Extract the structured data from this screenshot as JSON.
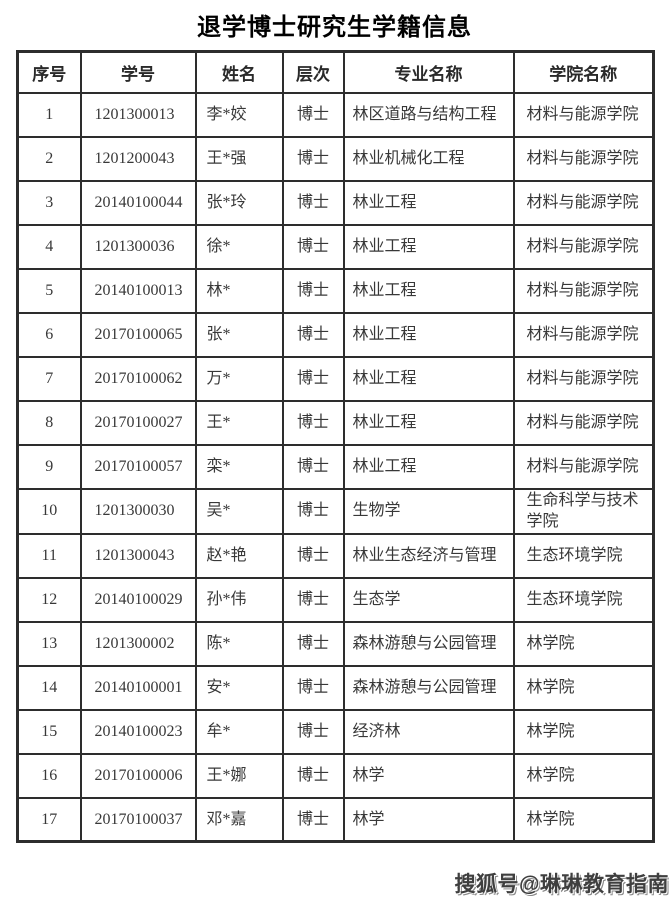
{
  "page": {
    "title": "退学博士研究生学籍信息",
    "watermark": "搜狐号@琳琳教育指南",
    "background": "#ffffff"
  },
  "colors": {
    "text": "#383838",
    "title": "#000000",
    "border": "#2d2d2d",
    "watermark": "#3f3f3f"
  },
  "table": {
    "headers": [
      "序号",
      "学号",
      "姓名",
      "层次",
      "专业名称",
      "学院名称"
    ],
    "rows": [
      [
        "1",
        "1201300013",
        "李*姣",
        "博士",
        "林区道路与结构工程",
        "材料与能源学院"
      ],
      [
        "2",
        "1201200043",
        "王*强",
        "博士",
        "林业机械化工程",
        "材料与能源学院"
      ],
      [
        "3",
        "20140100044",
        "张*玲",
        "博士",
        "林业工程",
        "材料与能源学院"
      ],
      [
        "4",
        "1201300036",
        "徐*",
        "博士",
        "林业工程",
        "材料与能源学院"
      ],
      [
        "5",
        "20140100013",
        "林*",
        "博士",
        "林业工程",
        "材料与能源学院"
      ],
      [
        "6",
        "20170100065",
        "张*",
        "博士",
        "林业工程",
        "材料与能源学院"
      ],
      [
        "7",
        "20170100062",
        "万*",
        "博士",
        "林业工程",
        "材料与能源学院"
      ],
      [
        "8",
        "20170100027",
        "王*",
        "博士",
        "林业工程",
        "材料与能源学院"
      ],
      [
        "9",
        "20170100057",
        "栾*",
        "博士",
        "林业工程",
        "材料与能源学院"
      ],
      [
        "10",
        "1201300030",
        "吴*",
        "博士",
        "生物学",
        "生命科学与技术学院"
      ],
      [
        "11",
        "1201300043",
        "赵*艳",
        "博士",
        "林业生态经济与管理",
        "生态环境学院"
      ],
      [
        "12",
        "20140100029",
        "孙*伟",
        "博士",
        "生态学",
        "生态环境学院"
      ],
      [
        "13",
        "1201300002",
        "陈*",
        "博士",
        "森林游憩与公园管理",
        "林学院"
      ],
      [
        "14",
        "20140100001",
        "安*",
        "博士",
        "森林游憩与公园管理",
        "林学院"
      ],
      [
        "15",
        "20140100023",
        "牟*",
        "博士",
        "经济林",
        "林学院"
      ],
      [
        "16",
        "20170100006",
        "王*娜",
        "博士",
        "林学",
        "林学院"
      ],
      [
        "17",
        "20170100037",
        "邓*嘉",
        "博士",
        "林学",
        "林学院"
      ]
    ]
  }
}
